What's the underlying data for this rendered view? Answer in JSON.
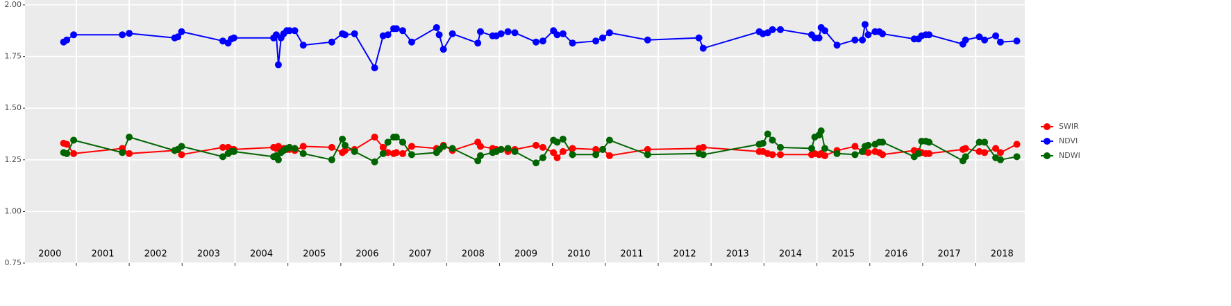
{
  "chart_data": {
    "type": "line",
    "x": [
      2000.76,
      2000.82,
      2000.95,
      2001.87,
      2002.0,
      2002.86,
      2002.92,
      2002.99,
      2003.77,
      2003.87,
      2003.93,
      2003.98,
      2004.73,
      2004.78,
      2004.82,
      2004.87,
      2004.92,
      2004.98,
      2005.03,
      2005.13,
      2005.29,
      2005.83,
      2006.03,
      2006.08,
      2006.26,
      2006.64,
      2006.8,
      2006.89,
      2007.0,
      2007.05,
      2007.17,
      2007.34,
      2007.81,
      2007.86,
      2007.94,
      2008.11,
      2008.59,
      2008.64,
      2008.87,
      2008.94,
      2009.03,
      2009.16,
      2009.29,
      2009.69,
      2009.82,
      2010.02,
      2010.09,
      2010.2,
      2010.38,
      2010.82,
      2010.95,
      2011.08,
      2011.8,
      2012.77,
      2012.85,
      2013.91,
      2013.98,
      2014.07,
      2014.16,
      2014.31,
      2014.9,
      2014.96,
      2015.04,
      2015.08,
      2015.15,
      2015.38,
      2015.72,
      2015.86,
      2015.91,
      2015.97,
      2016.1,
      2016.18,
      2016.24,
      2016.84,
      2016.92,
      2016.98,
      2017.06,
      2017.12,
      2017.76,
      2017.81,
      2018.07,
      2018.17,
      2018.38,
      2018.47,
      2018.78
    ],
    "series": [
      {
        "name": "SWIR",
        "color": "#ff0000",
        "values": [
          1.33,
          1.325,
          1.28,
          1.305,
          1.28,
          1.295,
          1.3,
          1.275,
          1.31,
          1.31,
          1.3,
          1.3,
          1.31,
          1.305,
          1.315,
          1.3,
          1.305,
          1.3,
          1.3,
          1.295,
          1.315,
          1.31,
          1.285,
          1.295,
          1.3,
          1.36,
          1.31,
          1.285,
          1.28,
          1.285,
          1.28,
          1.315,
          1.305,
          1.3,
          1.32,
          1.295,
          1.335,
          1.315,
          1.305,
          1.3,
          1.3,
          1.29,
          1.3,
          1.32,
          1.31,
          1.285,
          1.26,
          1.29,
          1.305,
          1.3,
          1.3,
          1.27,
          1.3,
          1.305,
          1.31,
          1.29,
          1.29,
          1.28,
          1.275,
          1.275,
          1.275,
          1.28,
          1.275,
          1.28,
          1.27,
          1.295,
          1.315,
          1.29,
          1.29,
          1.285,
          1.29,
          1.285,
          1.275,
          1.295,
          1.29,
          1.285,
          1.28,
          1.28,
          1.3,
          1.305,
          1.29,
          1.285,
          1.305,
          1.285,
          1.325
        ]
      },
      {
        "name": "NDVI",
        "color": "#0000ff",
        "values": [
          1.82,
          1.83,
          1.855,
          1.855,
          1.862,
          1.84,
          1.845,
          1.87,
          1.825,
          1.815,
          1.835,
          1.84,
          1.84,
          1.855,
          1.71,
          1.84,
          1.86,
          1.875,
          1.875,
          1.875,
          1.805,
          1.82,
          1.86,
          1.855,
          1.86,
          1.695,
          1.85,
          1.855,
          1.885,
          1.885,
          1.875,
          1.82,
          1.89,
          1.855,
          1.785,
          1.86,
          1.815,
          1.87,
          1.85,
          1.85,
          1.86,
          1.87,
          1.865,
          1.82,
          1.825,
          1.875,
          1.855,
          1.86,
          1.815,
          1.825,
          1.84,
          1.865,
          1.83,
          1.84,
          1.79,
          1.87,
          1.86,
          1.865,
          1.88,
          1.88,
          1.855,
          1.84,
          1.84,
          1.89,
          1.875,
          1.805,
          1.83,
          1.83,
          1.905,
          1.855,
          1.87,
          1.87,
          1.86,
          1.835,
          1.835,
          1.85,
          1.855,
          1.855,
          1.81,
          1.83,
          1.845,
          1.83,
          1.85,
          1.82,
          1.825
        ]
      },
      {
        "name": "NDWI",
        "color": "#006400",
        "values": [
          1.285,
          1.28,
          1.345,
          1.285,
          1.36,
          1.295,
          1.3,
          1.315,
          1.265,
          1.28,
          1.29,
          1.29,
          1.265,
          1.27,
          1.25,
          1.285,
          1.295,
          1.305,
          1.31,
          1.305,
          1.28,
          1.25,
          1.35,
          1.32,
          1.29,
          1.24,
          1.28,
          1.335,
          1.36,
          1.36,
          1.335,
          1.275,
          1.285,
          1.3,
          1.315,
          1.305,
          1.245,
          1.27,
          1.285,
          1.29,
          1.3,
          1.305,
          1.29,
          1.235,
          1.26,
          1.345,
          1.335,
          1.35,
          1.275,
          1.275,
          1.3,
          1.345,
          1.275,
          1.28,
          1.275,
          1.325,
          1.33,
          1.375,
          1.345,
          1.31,
          1.305,
          1.36,
          1.37,
          1.39,
          1.305,
          1.28,
          1.275,
          1.29,
          1.315,
          1.32,
          1.325,
          1.335,
          1.335,
          1.265,
          1.28,
          1.34,
          1.34,
          1.335,
          1.245,
          1.265,
          1.335,
          1.335,
          1.26,
          1.25,
          1.265
        ]
      }
    ],
    "xlim": [
      2000.03,
      2018.93
    ],
    "xticks": [
      {
        "value": 2000.5,
        "label": "2000"
      },
      {
        "value": 2001.5,
        "label": "2001"
      },
      {
        "value": 2002.5,
        "label": "2002"
      },
      {
        "value": 2003.5,
        "label": "2003"
      },
      {
        "value": 2004.5,
        "label": "2004"
      },
      {
        "value": 2005.5,
        "label": "2005"
      },
      {
        "value": 2006.5,
        "label": "2006"
      },
      {
        "value": 2007.5,
        "label": "2007"
      },
      {
        "value": 2008.5,
        "label": "2008"
      },
      {
        "value": 2009.5,
        "label": "2009"
      },
      {
        "value": 2010.5,
        "label": "2010"
      },
      {
        "value": 2011.5,
        "label": "2011"
      },
      {
        "value": 2012.5,
        "label": "2012"
      },
      {
        "value": 2013.5,
        "label": "2013"
      },
      {
        "value": 2014.5,
        "label": "2014"
      },
      {
        "value": 2015.5,
        "label": "2015"
      },
      {
        "value": 2016.5,
        "label": "2016"
      },
      {
        "value": 2017.5,
        "label": "2017"
      },
      {
        "value": 2018.5,
        "label": "2018"
      }
    ],
    "xgrid": [
      2001,
      2002,
      2003,
      2004,
      2005,
      2006,
      2007,
      2008,
      2009,
      2010,
      2011,
      2012,
      2013,
      2014,
      2015,
      2016,
      2017,
      2018
    ],
    "ylim": [
      0.75,
      2.0
    ],
    "yticks": [
      {
        "value": 0.75,
        "label": "0.75"
      },
      {
        "value": 1.0,
        "label": "1.00"
      },
      {
        "value": 1.25,
        "label": "1.25"
      },
      {
        "value": 1.5,
        "label": "1.50"
      },
      {
        "value": 1.75,
        "label": "1.75"
      },
      {
        "value": 2.0,
        "label": "2.00"
      }
    ],
    "grid": true,
    "legend": "right"
  }
}
